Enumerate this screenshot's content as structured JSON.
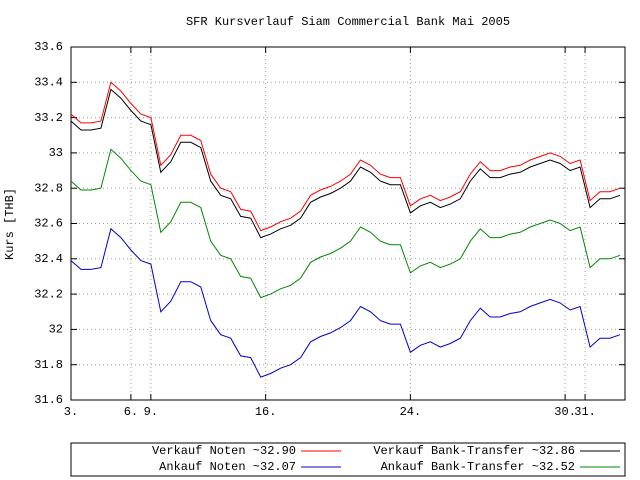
{
  "chart_data": {
    "type": "line",
    "title": "SFR Kursverlauf Siam Commercial Bank Mai 2005",
    "y_label": "Kurs [THB]",
    "x": [
      0,
      2,
      4,
      6,
      8,
      10,
      12,
      14,
      16,
      18,
      20,
      22,
      24,
      26,
      28,
      30,
      32,
      34,
      36,
      38,
      40,
      42,
      44,
      46,
      48,
      50,
      52,
      54,
      56,
      58,
      60,
      62,
      64,
      66,
      68,
      70,
      72,
      74,
      76,
      78,
      80,
      82,
      84,
      86,
      88,
      90,
      92,
      94,
      96,
      98,
      100,
      102,
      104,
      106,
      108,
      110
    ],
    "xlim": [
      0,
      111
    ],
    "xticks": [
      {
        "value": 0,
        "label": "3."
      },
      {
        "value": 12,
        "label": "6."
      },
      {
        "value": 16,
        "label": "9."
      },
      {
        "value": 39,
        "label": "16."
      },
      {
        "value": 68,
        "label": "24."
      },
      {
        "value": 99,
        "label": "30."
      },
      {
        "value": 103,
        "label": "31."
      }
    ],
    "ylim": [
      31.6,
      33.6
    ],
    "yticks": [
      31.6,
      31.8,
      32,
      32.2,
      32.4,
      32.6,
      32.8,
      33,
      33.2,
      33.4,
      33.6
    ],
    "grid": true,
    "legend": "bottom",
    "series": [
      {
        "name": "Verkauf Noten ~32.90",
        "color": "#ff0000",
        "values": [
          33.22,
          33.17,
          33.17,
          33.18,
          33.4,
          33.35,
          33.28,
          33.22,
          33.2,
          32.93,
          32.99,
          33.1,
          33.1,
          33.07,
          32.88,
          32.8,
          32.78,
          32.68,
          32.67,
          32.56,
          32.58,
          32.61,
          32.63,
          32.67,
          32.76,
          32.79,
          32.81,
          32.84,
          32.88,
          32.96,
          32.93,
          32.88,
          32.86,
          32.86,
          32.7,
          32.74,
          32.76,
          32.73,
          32.75,
          32.78,
          32.88,
          32.95,
          32.9,
          32.9,
          32.92,
          32.93,
          32.96,
          32.98,
          33.0,
          32.98,
          32.94,
          32.96,
          32.73,
          32.78,
          32.78,
          32.8
        ]
      },
      {
        "name": "Verkauf Bank-Transfer ~32.86",
        "color": "#000000",
        "values": [
          33.18,
          33.13,
          33.13,
          33.14,
          33.36,
          33.31,
          33.24,
          33.18,
          33.16,
          32.89,
          32.95,
          33.06,
          33.06,
          33.03,
          32.84,
          32.76,
          32.74,
          32.64,
          32.63,
          32.52,
          32.54,
          32.57,
          32.59,
          32.63,
          32.72,
          32.75,
          32.77,
          32.8,
          32.84,
          32.92,
          32.89,
          32.84,
          32.82,
          32.82,
          32.66,
          32.7,
          32.72,
          32.69,
          32.71,
          32.74,
          32.84,
          32.91,
          32.86,
          32.86,
          32.88,
          32.89,
          32.92,
          32.94,
          32.96,
          32.94,
          32.9,
          32.92,
          32.69,
          32.74,
          32.74,
          32.76
        ]
      },
      {
        "name": "Ankauf Noten ~32.07",
        "color": "#0000cc",
        "values": [
          32.39,
          32.34,
          32.34,
          32.35,
          32.57,
          32.52,
          32.45,
          32.39,
          32.37,
          32.1,
          32.16,
          32.27,
          32.27,
          32.24,
          32.05,
          31.97,
          31.95,
          31.85,
          31.84,
          31.73,
          31.75,
          31.78,
          31.8,
          31.84,
          31.93,
          31.96,
          31.98,
          32.01,
          32.05,
          32.13,
          32.1,
          32.05,
          32.03,
          32.03,
          31.87,
          31.91,
          31.93,
          31.9,
          31.92,
          31.95,
          32.05,
          32.12,
          32.07,
          32.07,
          32.09,
          32.1,
          32.13,
          32.15,
          32.17,
          32.15,
          32.11,
          32.13,
          31.9,
          31.95,
          31.95,
          31.97
        ]
      },
      {
        "name": "Ankauf Bank-Transfer ~32.52",
        "color": "#008800",
        "values": [
          32.84,
          32.79,
          32.79,
          32.8,
          33.02,
          32.97,
          32.9,
          32.84,
          32.82,
          32.55,
          32.61,
          32.72,
          32.72,
          32.69,
          32.5,
          32.42,
          32.4,
          32.3,
          32.29,
          32.18,
          32.2,
          32.23,
          32.25,
          32.29,
          32.38,
          32.41,
          32.43,
          32.46,
          32.5,
          32.58,
          32.55,
          32.5,
          32.48,
          32.48,
          32.32,
          32.36,
          32.38,
          32.35,
          32.37,
          32.4,
          32.5,
          32.57,
          32.52,
          32.52,
          32.54,
          32.55,
          32.58,
          32.6,
          32.62,
          32.6,
          32.56,
          32.58,
          32.35,
          32.4,
          32.4,
          32.42
        ]
      }
    ]
  }
}
